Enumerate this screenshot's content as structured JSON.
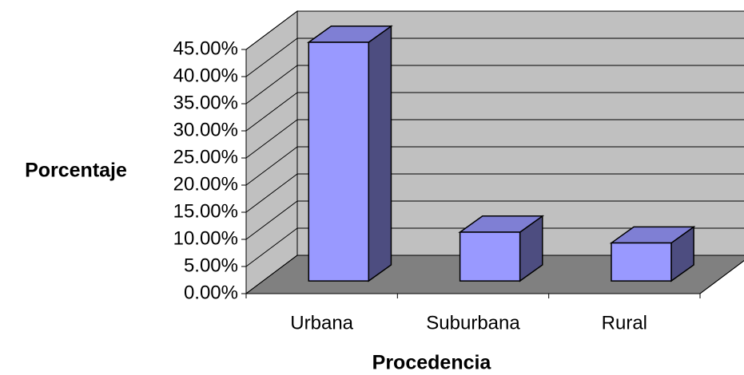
{
  "chart_data": {
    "type": "bar3d",
    "categories": [
      "Urbana",
      "Suburbana",
      "Rural"
    ],
    "values": [
      44,
      9,
      7
    ],
    "color": "#9999ff",
    "ylim": [
      0,
      45
    ],
    "yticks": [
      {
        "value": 0,
        "label": "0.00%"
      },
      {
        "value": 5,
        "label": "5.00%"
      },
      {
        "value": 10,
        "label": "10.00%"
      },
      {
        "value": 15,
        "label": "15.00%"
      },
      {
        "value": 20,
        "label": "20.00%"
      },
      {
        "value": 25,
        "label": "25.00%"
      },
      {
        "value": 30,
        "label": "30.00%"
      },
      {
        "value": 35,
        "label": "35.00%"
      },
      {
        "value": 40,
        "label": "40.00%"
      },
      {
        "value": 45,
        "label": "45.00%"
      }
    ],
    "x_label": "Procedencia",
    "y_label": "Porcentaje",
    "grid": true
  }
}
